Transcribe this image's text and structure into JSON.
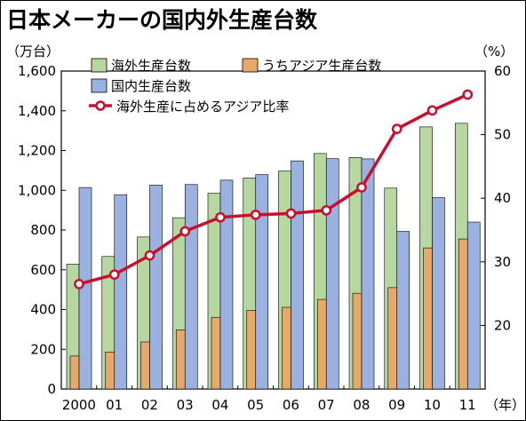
{
  "chart_data": {
    "type": "bar",
    "title": "日本メーカーの国内外生産台数",
    "y_left_label": "（万台）",
    "y_right_label": "（%）",
    "x_unit_label": "（年）",
    "categories": [
      "2000",
      "01",
      "02",
      "03",
      "04",
      "05",
      "06",
      "07",
      "08",
      "09",
      "10",
      "11"
    ],
    "y_left_ticks": [
      "0",
      "200",
      "400",
      "600",
      "800",
      "1,000",
      "1,200",
      "1,400",
      "1,600"
    ],
    "y_right_ticks": [
      "20",
      "30",
      "40",
      "50",
      "60"
    ],
    "ylim_left": [
      0,
      1600
    ],
    "ylim_right": [
      10,
      60
    ],
    "series": [
      {
        "name": "海外生産台数",
        "type": "bar",
        "axis": "left",
        "color": "#b7d7a1",
        "values": [
          628,
          667,
          765,
          862,
          985,
          1062,
          1097,
          1185,
          1165,
          1011,
          1319,
          1337
        ]
      },
      {
        "name": "うちアジア生産台数",
        "type": "bar",
        "axis": "left",
        "color": "#e6a96a",
        "values": [
          166,
          186,
          237,
          298,
          361,
          396,
          411,
          451,
          482,
          510,
          710,
          755
        ]
      },
      {
        "name": "国内生産台数",
        "type": "bar",
        "axis": "left",
        "color": "#9bb1e0",
        "values": [
          1014,
          978,
          1026,
          1029,
          1051,
          1079,
          1148,
          1159,
          1158,
          793,
          963,
          840
        ]
      },
      {
        "name": "海外生産に占めるアジア比率",
        "type": "line",
        "axis": "right",
        "color": "#c8102e",
        "values": [
          26.5,
          28,
          31,
          34.8,
          37,
          37.4,
          37.6,
          38.1,
          41.7,
          50.9,
          53.8,
          56.3
        ]
      }
    ],
    "legend_placement": "top-left"
  }
}
